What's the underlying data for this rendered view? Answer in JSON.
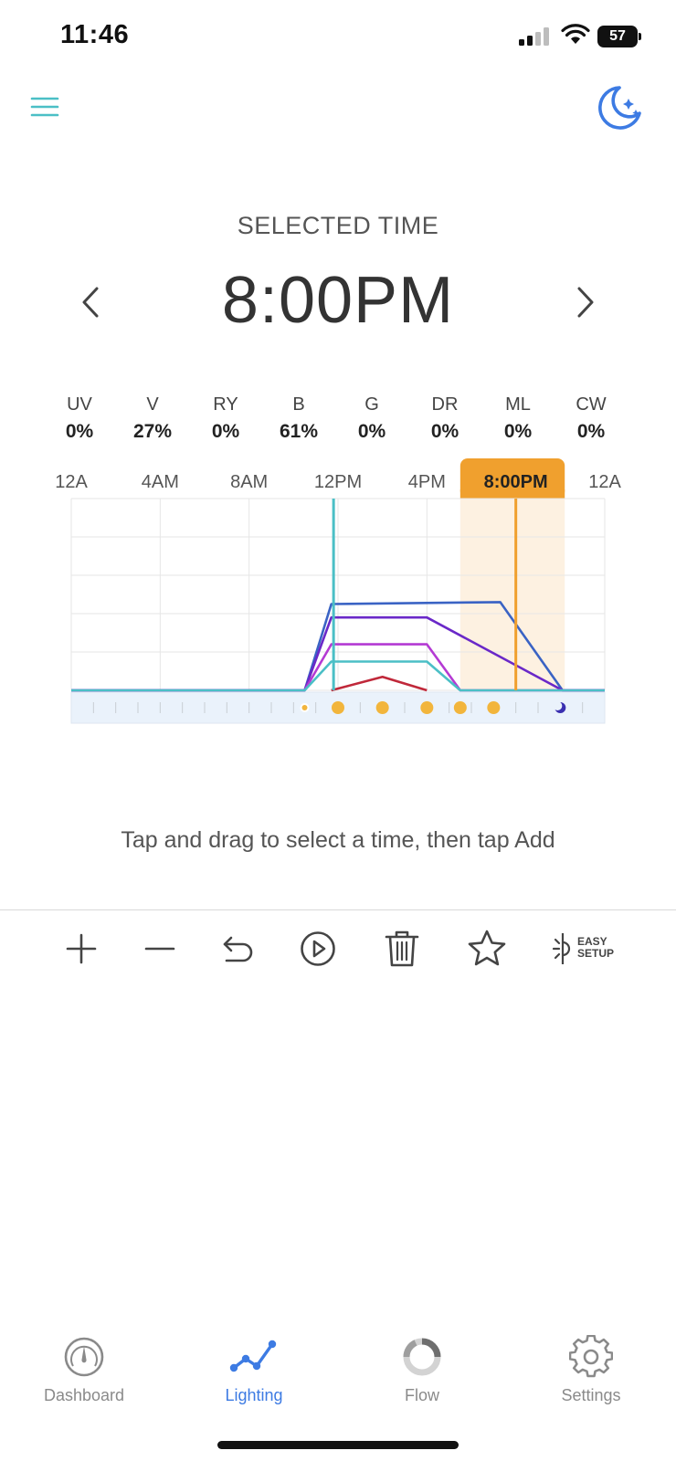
{
  "status_bar": {
    "time": "11:46",
    "battery": "57"
  },
  "header": {
    "menu_icon": "hamburger-menu-icon",
    "night_icon": "moon-stars-icon",
    "accent": "#4bbfc6",
    "night_color": "#3d7be3"
  },
  "selected": {
    "caption": "SELECTED TIME",
    "time": "8:00PM"
  },
  "channels": [
    {
      "name": "UV",
      "value": "0%"
    },
    {
      "name": "V",
      "value": "27%"
    },
    {
      "name": "RY",
      "value": "0%"
    },
    {
      "name": "B",
      "value": "61%"
    },
    {
      "name": "G",
      "value": "0%"
    },
    {
      "name": "DR",
      "value": "0%"
    },
    {
      "name": "ML",
      "value": "0%"
    },
    {
      "name": "CW",
      "value": "0%"
    }
  ],
  "chart_data": {
    "type": "line",
    "x_ticks": [
      "12A",
      "4AM",
      "8AM",
      "12PM",
      "4PM",
      "",
      "12A"
    ],
    "x_tick_hours": [
      0,
      4,
      8,
      12,
      16,
      20,
      24
    ],
    "selected_label": "8:00PM",
    "selected_hour": 20,
    "now_hour": 11.8,
    "selection_window_hours": [
      17.5,
      22.2
    ],
    "ylim": [
      0,
      100
    ],
    "grid": true,
    "series": [
      {
        "color": "#3a63c4",
        "points": [
          [
            0,
            0
          ],
          [
            10.5,
            0
          ],
          [
            11.7,
            45
          ],
          [
            19.3,
            46
          ],
          [
            22.1,
            0
          ],
          [
            24,
            0
          ]
        ]
      },
      {
        "color": "#6a28c8",
        "points": [
          [
            0,
            0
          ],
          [
            10.5,
            0
          ],
          [
            11.7,
            38
          ],
          [
            16,
            38
          ],
          [
            22.1,
            0
          ],
          [
            24,
            0
          ]
        ]
      },
      {
        "color": "#b43ad3",
        "points": [
          [
            0,
            0
          ],
          [
            10.5,
            0
          ],
          [
            11.7,
            24
          ],
          [
            16,
            24
          ],
          [
            17.5,
            0
          ],
          [
            24,
            0
          ]
        ]
      },
      {
        "color": "#4bbfc6",
        "points": [
          [
            0,
            0
          ],
          [
            10.5,
            0
          ],
          [
            11.7,
            15
          ],
          [
            16,
            15
          ],
          [
            17.5,
            0
          ],
          [
            24,
            0
          ]
        ]
      },
      {
        "color": "#c0283a",
        "points": [
          [
            11.7,
            0
          ],
          [
            14,
            7
          ],
          [
            16,
            0
          ]
        ]
      }
    ],
    "markers": [
      {
        "hour": 10.5,
        "kind": "sunrise-small"
      },
      {
        "hour": 12,
        "kind": "sun"
      },
      {
        "hour": 14,
        "kind": "sun"
      },
      {
        "hour": 16,
        "kind": "sun"
      },
      {
        "hour": 17.5,
        "kind": "sun"
      },
      {
        "hour": 19,
        "kind": "sun"
      },
      {
        "hour": 22,
        "kind": "moon"
      }
    ],
    "selection_color": "#f0a02e",
    "now_color": "#4bbfc6"
  },
  "hint": "Tap and drag to select a time, then tap Add",
  "toolbar": {
    "icons": [
      "add-icon",
      "remove-icon",
      "undo-icon",
      "play-icon",
      "trash-icon",
      "star-icon",
      "easy-setup-icon"
    ],
    "easy_setup_line1": "EASY",
    "easy_setup_line2": "SETUP"
  },
  "tabs": [
    {
      "label": "Dashboard",
      "icon": "gauge-icon"
    },
    {
      "label": "Lighting",
      "icon": "line-graph-icon",
      "active": true
    },
    {
      "label": "Flow",
      "icon": "flow-ring-icon"
    },
    {
      "label": "Settings",
      "icon": "gear-icon"
    }
  ]
}
